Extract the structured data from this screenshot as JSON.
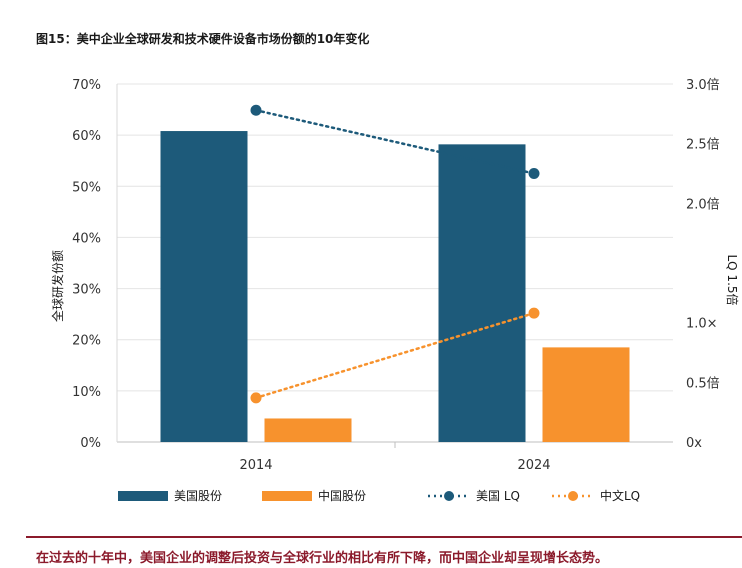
{
  "title": "图15：美中企业全球研发和技术硬件设备市场份额的10年变化",
  "caption": "在过去的十年中，美国企业的调整后投资与全球行业的相比有所下降，而中国企业却呈现增长态势。",
  "colors": {
    "us": "#1d5a7a",
    "cn": "#f7922d",
    "caption": "#8b1a2b"
  },
  "chart_data": {
    "type": "bar",
    "categories": [
      "2014",
      "2024"
    ],
    "ylabel": "全球研发份额",
    "y2label": "LQ 1.5倍",
    "ylim": [
      0,
      70
    ],
    "y_ticks": [
      "0%",
      "10%",
      "20%",
      "30%",
      "40%",
      "50%",
      "60%",
      "70%"
    ],
    "y2lim": [
      0,
      3.0
    ],
    "y2_ticks": [
      {
        "v": 0,
        "label": "0x"
      },
      {
        "v": 0.5,
        "label": "0.5倍"
      },
      {
        "v": 1.0,
        "label": "1.0×"
      },
      {
        "v": 2.0,
        "label": "2.0倍"
      },
      {
        "v": 2.5,
        "label": "2.5倍"
      },
      {
        "v": 3.0,
        "label": "3.0倍"
      }
    ],
    "series": [
      {
        "name": "美国股份",
        "kind": "bar",
        "axis": "left",
        "values": [
          60.8,
          58.2
        ]
      },
      {
        "name": "中国股份",
        "kind": "bar",
        "axis": "left",
        "values": [
          4.6,
          18.5
        ]
      },
      {
        "name": "美国 LQ",
        "kind": "line",
        "axis": "right",
        "values": [
          2.78,
          2.25
        ]
      },
      {
        "name": "中文LQ",
        "kind": "line",
        "axis": "right",
        "values": [
          0.37,
          1.08
        ]
      }
    ],
    "grid": true,
    "legend": "bottom"
  }
}
